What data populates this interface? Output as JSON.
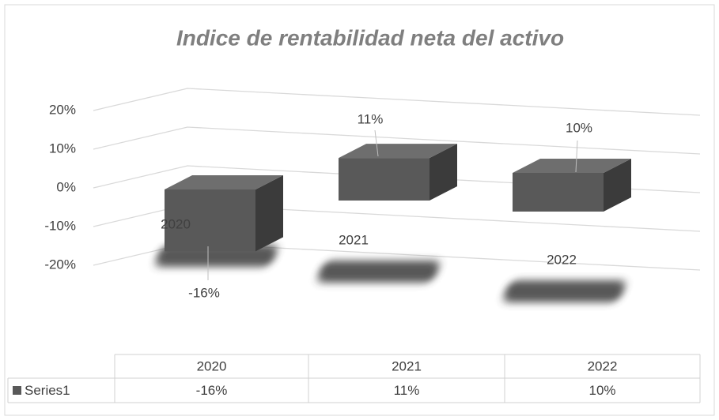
{
  "chart_data": {
    "type": "bar",
    "title": "Indice de rentabilidad neta del activo",
    "categories": [
      "2020",
      "2021",
      "2022"
    ],
    "series": [
      {
        "name": "Series1",
        "color": "#595959",
        "values": [
          -16,
          11,
          10
        ],
        "value_labels": [
          "-16%",
          "11%",
          "10%"
        ]
      }
    ],
    "ylim": [
      -20,
      20
    ],
    "yticks": [
      {
        "value": -20,
        "label": "-20%"
      },
      {
        "value": -10,
        "label": "-10%"
      },
      {
        "value": 0,
        "label": "0%"
      },
      {
        "value": 10,
        "label": "10%"
      },
      {
        "value": 20,
        "label": "20%"
      }
    ],
    "grid": true,
    "data_table": true
  }
}
